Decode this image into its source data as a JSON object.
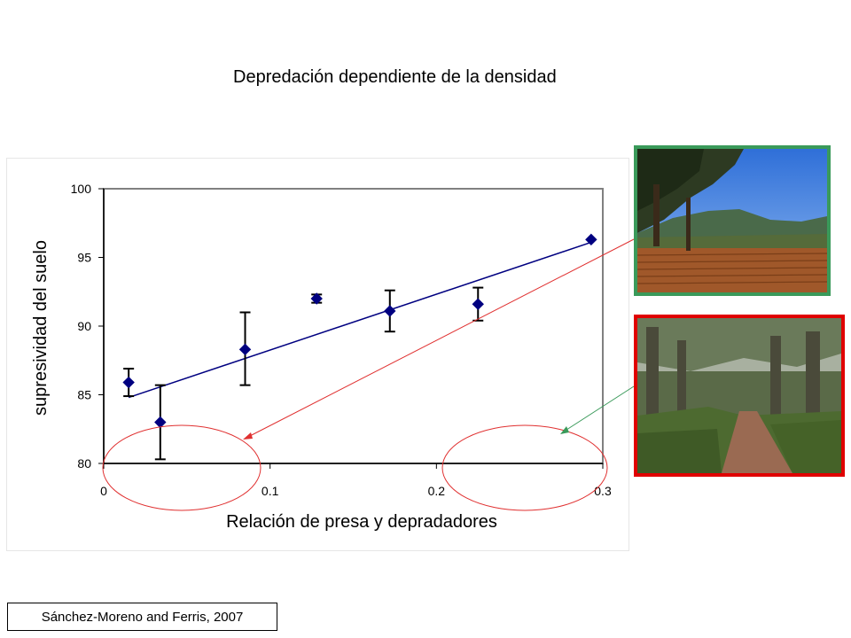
{
  "slide": {
    "title": "Depredación dependiente de la densidad",
    "citation": "Sánchez-Moreno and Ferris, 2007"
  },
  "chart_data": {
    "type": "scatter",
    "title": "",
    "xlabel": "Relación de presa y depradadores",
    "ylabel": "supresividad del suelo",
    "xlim": [
      0,
      0.3
    ],
    "ylim": [
      80,
      100
    ],
    "xticks": [
      "0",
      "0.1",
      "0.2",
      "0.3"
    ],
    "yticks": [
      "80",
      "85",
      "90",
      "95",
      "100"
    ],
    "grid": false,
    "series": [
      {
        "points": [
          {
            "x": 0.015,
            "y": 85.9,
            "err_low": 84.9,
            "err_high": 86.9
          },
          {
            "x": 0.034,
            "y": 83.0,
            "err_low": 80.3,
            "err_high": 85.7
          },
          {
            "x": 0.085,
            "y": 88.3,
            "err_low": 85.7,
            "err_high": 91.0
          },
          {
            "x": 0.128,
            "y": 92.0,
            "err_low": 91.7,
            "err_high": 92.3
          },
          {
            "x": 0.172,
            "y": 91.1,
            "err_low": 89.6,
            "err_high": 92.6
          },
          {
            "x": 0.225,
            "y": 91.6,
            "err_low": 90.4,
            "err_high": 92.8
          },
          {
            "x": 0.293,
            "y": 96.3,
            "err_low": 96.3,
            "err_high": 96.3
          }
        ],
        "trendline": {
          "x": [
            0.015,
            0.293
          ],
          "y": [
            84.8,
            96.1
          ]
        },
        "color": "#000080"
      }
    ]
  },
  "photos": {
    "top": {
      "subject": "vineyard-landscape",
      "border_color": "#3a9a5a"
    },
    "bottom": {
      "subject": "forest-trail",
      "border_color": "#e00000"
    }
  },
  "annotations": {
    "red_color": "#e03030",
    "green_color": "#3a9a5a"
  }
}
